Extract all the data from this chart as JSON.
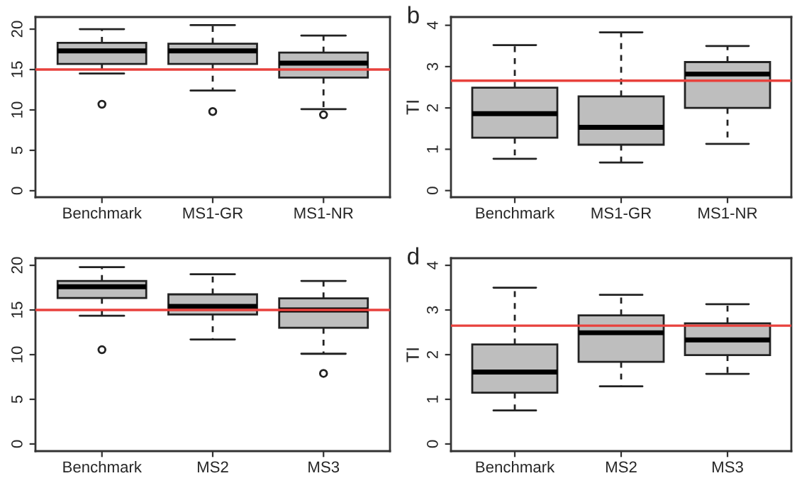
{
  "chart_data": [
    {
      "type": "box",
      "categories": [
        "Benchmark",
        "MS1-GR",
        "MS1-NR"
      ],
      "ylim": [
        -0.8,
        21.5
      ],
      "yticks": [
        0,
        5,
        10,
        15,
        20
      ],
      "grid": false,
      "boxes": [
        {
          "low": 14.5,
          "q1": 15.7,
          "median": 17.3,
          "q3": 18.3,
          "high": 20,
          "outliers": [
            10.7
          ]
        },
        {
          "low": 12.4,
          "q1": 15.7,
          "median": 17.3,
          "q3": 18.2,
          "high": 20.5,
          "outliers": [
            9.8
          ]
        },
        {
          "low": 10.1,
          "q1": 14.0,
          "median": 15.8,
          "q3": 17.1,
          "high": 19.2,
          "outliers": [
            9.4
          ]
        }
      ],
      "ref_lines": [
        {
          "axis": "y",
          "value": 15,
          "color": "#e8413c"
        }
      ]
    },
    {
      "type": "box",
      "title": "b",
      "ylabel": "TI",
      "categories": [
        "Benchmark",
        "MS1-GR",
        "MS1-NR"
      ],
      "ylim": [
        -0.16,
        4.2
      ],
      "yticks": [
        0,
        1,
        2,
        3,
        4
      ],
      "grid": false,
      "boxes": [
        {
          "low": 0.77,
          "q1": 1.28,
          "median": 1.86,
          "q3": 2.49,
          "high": 3.52
        },
        {
          "low": 0.68,
          "q1": 1.11,
          "median": 1.53,
          "q3": 2.28,
          "high": 3.83
        },
        {
          "low": 1.13,
          "q1": 2.0,
          "median": 2.82,
          "q3": 3.11,
          "high": 3.5
        }
      ],
      "ref_lines": [
        {
          "axis": "y",
          "value": 2.66,
          "color": "#e8413c"
        }
      ]
    },
    {
      "type": "box",
      "categories": [
        "Benchmark",
        "MS2",
        "MS3"
      ],
      "ylim": [
        -0.8,
        20.8
      ],
      "yticks": [
        0,
        5,
        10,
        15,
        20
      ],
      "grid": false,
      "boxes": [
        {
          "low": 14.35,
          "q1": 16.35,
          "median": 17.6,
          "q3": 18.25,
          "high": 19.8,
          "outliers": [
            10.55
          ]
        },
        {
          "low": 11.7,
          "q1": 14.5,
          "median": 15.4,
          "q3": 16.75,
          "high": 19.0
        },
        {
          "low": 10.1,
          "q1": 13.0,
          "median": 15.0,
          "q3": 16.3,
          "high": 18.25,
          "outliers": [
            7.9
          ]
        }
      ],
      "ref_lines": [
        {
          "axis": "y",
          "value": 15,
          "color": "#e8413c"
        }
      ]
    },
    {
      "type": "box",
      "title": "d",
      "ylabel": "TI",
      "categories": [
        "Benchmark",
        "MS2",
        "MS3"
      ],
      "ylim": [
        -0.16,
        4.16
      ],
      "yticks": [
        0,
        1,
        2,
        3,
        4
      ],
      "grid": false,
      "boxes": [
        {
          "low": 0.75,
          "q1": 1.15,
          "median": 1.61,
          "q3": 2.23,
          "high": 3.5
        },
        {
          "low": 1.29,
          "q1": 1.84,
          "median": 2.49,
          "q3": 2.88,
          "high": 3.34
        },
        {
          "low": 1.57,
          "q1": 1.99,
          "median": 2.33,
          "q3": 2.7,
          "high": 3.13
        }
      ],
      "ref_lines": [
        {
          "axis": "y",
          "value": 2.65,
          "color": "#e8413c"
        }
      ]
    }
  ]
}
